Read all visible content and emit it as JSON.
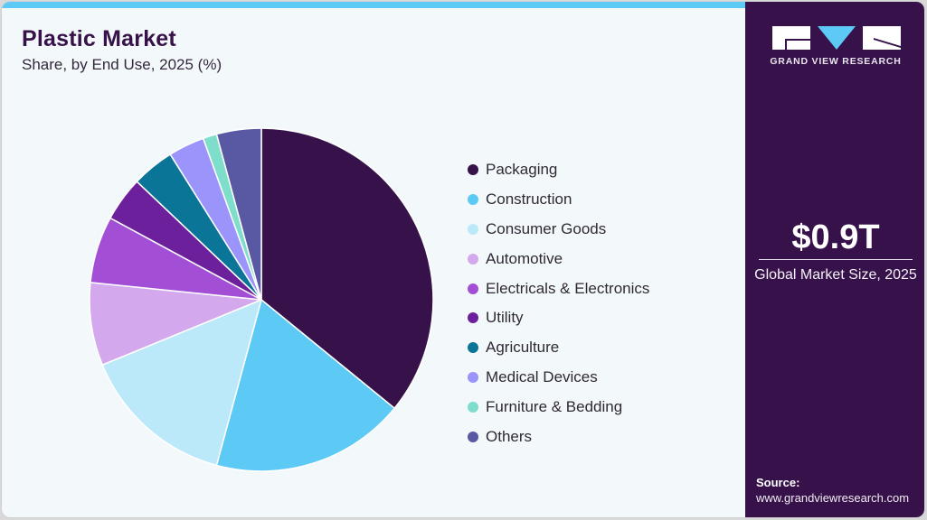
{
  "header": {
    "title": "Plastic Market",
    "subtitle": "Share, by End Use, 2025 (%)"
  },
  "sidebar": {
    "brand": "GRAND VIEW RESEARCH",
    "market_value": "$0.9T",
    "market_label": "Global Market Size, 2025",
    "source_label": "Source:",
    "source_url": "www.grandviewresearch.com"
  },
  "colors": {
    "accent_bar": "#5ccaf5",
    "sidebar_bg": "#37124a",
    "panel_bg": "#f3f8fb"
  },
  "legend": [
    {
      "label": "Packaging",
      "color": "#37124a"
    },
    {
      "label": "Construction",
      "color": "#5ccaf5"
    },
    {
      "label": "Consumer Goods",
      "color": "#bce9f9"
    },
    {
      "label": "Automotive",
      "color": "#d4a8ec"
    },
    {
      "label": "Electricals & Electronics",
      "color": "#a24fd6"
    },
    {
      "label": "Utility",
      "color": "#6d209b"
    },
    {
      "label": "Agriculture",
      "color": "#0b7598"
    },
    {
      "label": "Medical Devices",
      "color": "#9b94fb"
    },
    {
      "label": "Furniture & Bedding",
      "color": "#7fdecb"
    },
    {
      "label": "Others",
      "color": "#5958a3"
    }
  ],
  "chart_data": {
    "type": "pie",
    "title": "Plastic Market",
    "subtitle": "Share, by End Use, 2025 (%)",
    "categories": [
      "Packaging",
      "Construction",
      "Consumer Goods",
      "Automotive",
      "Electricals & Electronics",
      "Utility",
      "Agriculture",
      "Medical Devices",
      "Furniture & Bedding",
      "Others"
    ],
    "values": [
      35.9,
      18.3,
      14.6,
      7.8,
      6.3,
      4.2,
      4.0,
      3.4,
      1.3,
      4.2
    ],
    "colors": [
      "#37124a",
      "#5ccaf5",
      "#bce9f9",
      "#d4a8ec",
      "#a24fd6",
      "#6d209b",
      "#0b7598",
      "#9b94fb",
      "#7fdecb",
      "#5958a3"
    ],
    "start_angle": "12 o'clock, clockwise",
    "legend_position": "right",
    "annotation": "$0.9T Global Market Size, 2025"
  }
}
